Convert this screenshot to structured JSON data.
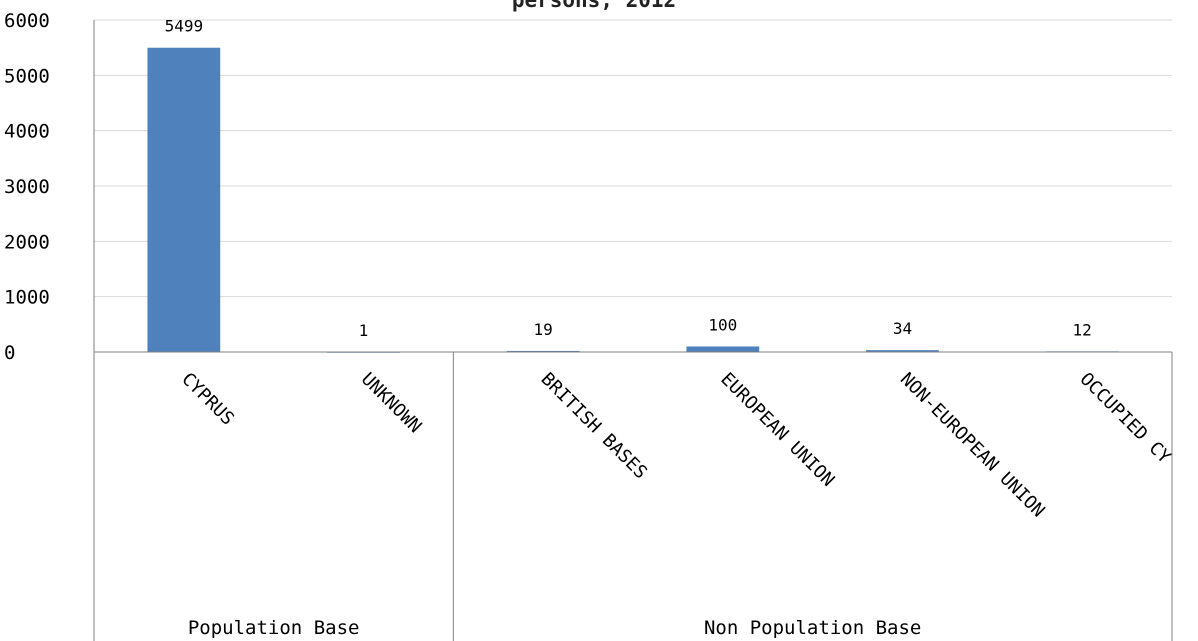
{
  "chart_data": {
    "type": "bar",
    "title": "persons, 2012",
    "xlabel": "",
    "ylabel": "",
    "ylim": [
      0,
      6000
    ],
    "yticks": [
      0,
      1000,
      2000,
      3000,
      4000,
      5000,
      6000
    ],
    "grid": true,
    "categories": [
      "CYPRUS",
      "UNKNOWN",
      "BRITISH BASES",
      "EUROPEAN UNION",
      "NON-EUROPEAN UNION",
      "OCCUPIED CY"
    ],
    "values": [
      5499,
      1,
      19,
      100,
      34,
      12
    ],
    "groups": [
      {
        "label": "Population Base",
        "categories": [
          "CYPRUS",
          "UNKNOWN"
        ]
      },
      {
        "label": "Non Population Base",
        "categories": [
          "BRITISH BASES",
          "EUROPEAN UNION",
          "NON-EUROPEAN UNION",
          "OCCUPIED CY"
        ]
      }
    ],
    "colors": {
      "bar": "#4f81bd",
      "grid": "#d9d9d9",
      "axis": "#808080"
    }
  }
}
